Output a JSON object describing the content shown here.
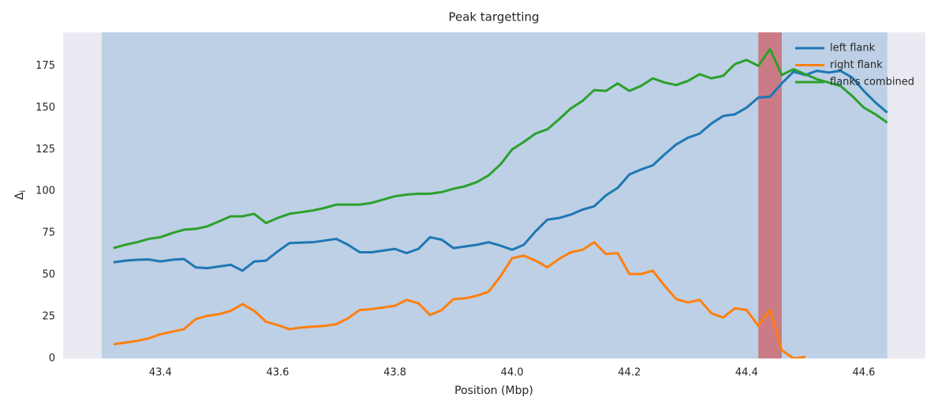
{
  "chart_data": {
    "type": "line",
    "title": "Peak targetting",
    "xlabel": "Position (Mbp)",
    "ylabel": {
      "symbol": "Δ",
      "subscript": "i"
    },
    "xlim": [
      43.234,
      44.705
    ],
    "ylim": [
      0,
      195
    ],
    "xticks": [
      43.4,
      43.6,
      43.8,
      {
        "value": 44,
        "label": "44.0"
      },
      44.2,
      44.4,
      44.6
    ],
    "yticks": [
      0,
      25,
      50,
      75,
      100,
      125,
      150,
      175
    ],
    "grid": true,
    "legend": "upper right",
    "spans": [
      {
        "xlim": [
          43.3,
          44.64
        ],
        "color": "#1f77b4",
        "opacity": 0.22
      },
      {
        "xlim": [
          44.42,
          44.46
        ],
        "color": "#d62728",
        "opacity": 0.5
      }
    ],
    "x": [
      43.32,
      43.34,
      43.36,
      43.38,
      43.4,
      43.42,
      43.44,
      43.46,
      43.48,
      43.5,
      43.52,
      43.54,
      43.56,
      43.58,
      43.6,
      43.62,
      43.64,
      43.66,
      43.68,
      43.7,
      43.72,
      43.74,
      43.76,
      43.78,
      43.8,
      43.82,
      43.84,
      43.86,
      43.88,
      43.9,
      43.92,
      43.94,
      43.96,
      43.98,
      44.0,
      44.02,
      44.04,
      44.06,
      44.08,
      44.1,
      44.12,
      44.14,
      44.16,
      44.18,
      44.2,
      44.22,
      44.24,
      44.26,
      44.28,
      44.3,
      44.32,
      44.34,
      44.36,
      44.38,
      44.4,
      44.42,
      44.44,
      44.46,
      44.48,
      44.5,
      44.52,
      44.54,
      44.56,
      44.58,
      44.6,
      44.62,
      44.64
    ],
    "series": [
      {
        "name": "left flank",
        "color": "#1f77b4",
        "values": [
          57.5,
          58.5,
          59,
          59.2,
          58,
          59,
          59.5,
          54.5,
          54,
          55,
          56,
          52.5,
          58,
          58.5,
          64,
          69,
          69.3,
          69.5,
          70.5,
          71.5,
          68,
          63.5,
          63.5,
          64.5,
          65.5,
          63,
          65.5,
          72.5,
          71,
          66,
          67,
          68,
          69.5,
          67.5,
          65,
          68,
          76,
          83,
          84,
          86,
          89,
          91,
          97.5,
          102,
          110,
          113,
          115.5,
          122,
          128,
          132,
          134.5,
          140.5,
          145,
          146,
          150,
          156,
          156.5,
          164.5,
          171.5,
          169.5,
          172,
          171,
          172,
          168,
          160,
          153,
          147
        ]
      },
      {
        "name": "right flank",
        "color": "#ff7f0e",
        "values": [
          8.5,
          9.5,
          10.5,
          12,
          14.5,
          16,
          17.5,
          23.5,
          25.5,
          26.5,
          28.5,
          32.5,
          28.5,
          22,
          20,
          17.5,
          18.5,
          19,
          19.5,
          20.5,
          24,
          29,
          29.5,
          30.5,
          31.5,
          35,
          33,
          26,
          29,
          35.5,
          36,
          37.5,
          40,
          49,
          60,
          61.5,
          58.5,
          54.5,
          59.5,
          63.5,
          65,
          69.5,
          62.5,
          63,
          50.5,
          50.5,
          52.5,
          43.5,
          35.5,
          33.5,
          35,
          27,
          24.5,
          30,
          29,
          19.5,
          29,
          5,
          0,
          1,
          null,
          null,
          null,
          null,
          null,
          null,
          null
        ]
      },
      {
        "name": "flanks combined",
        "color": "#2ca02c",
        "values": [
          66,
          68,
          69.5,
          71.5,
          72.5,
          75,
          77,
          77.5,
          79,
          82,
          85,
          85,
          86.5,
          81,
          84,
          86.5,
          87.5,
          88.5,
          90,
          92,
          92,
          92,
          93,
          95,
          97,
          98,
          98.5,
          98.5,
          99.5,
          101.5,
          103,
          105.5,
          109.5,
          116,
          125,
          129.5,
          134.5,
          137,
          143,
          149.5,
          154,
          160.5,
          160,
          164.5,
          160,
          163,
          167.5,
          165,
          163.5,
          166,
          170,
          167.5,
          169,
          176,
          178.5,
          175,
          185,
          169.5,
          173,
          170,
          167,
          165,
          163,
          157,
          150,
          146,
          141
        ]
      }
    ]
  }
}
